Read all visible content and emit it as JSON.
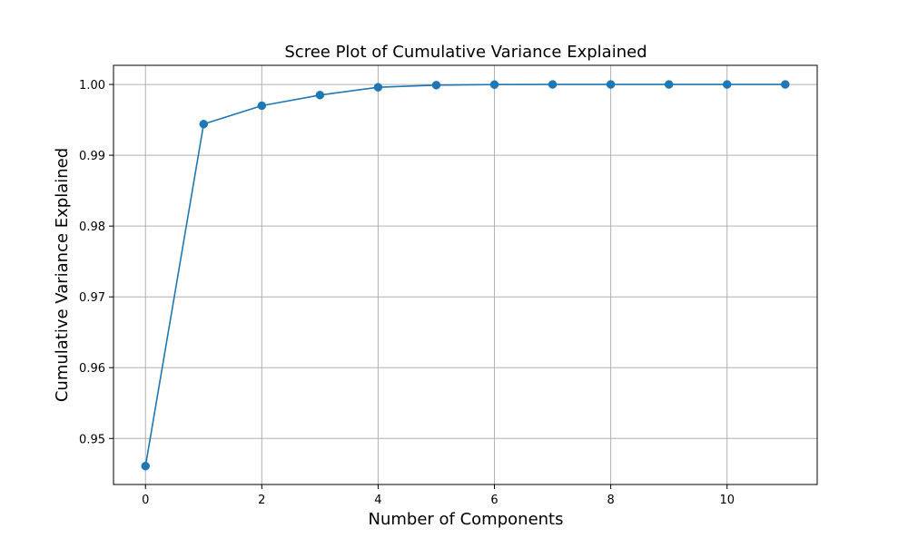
{
  "chart_data": {
    "type": "line",
    "title": "Scree Plot of Cumulative Variance Explained",
    "xlabel": "Number of Components",
    "ylabel": "Cumulative Variance Explained",
    "x": [
      0,
      1,
      2,
      3,
      4,
      5,
      6,
      7,
      8,
      9,
      10,
      11
    ],
    "series": [
      {
        "name": "",
        "values": [
          0.9461,
          0.9944,
          0.997,
          0.9985,
          0.9996,
          0.9999,
          0.99998,
          1.0,
          1.0,
          1.0,
          1.0,
          1.0
        ],
        "color": "#1f77b4",
        "marker": "circle"
      }
    ],
    "xlim": [
      -0.55,
      11.55
    ],
    "ylim": [
      0.9435,
      1.0027
    ],
    "x_ticks": [
      0,
      2,
      4,
      6,
      8,
      10
    ],
    "x_tick_labels": [
      "0",
      "2",
      "4",
      "6",
      "8",
      "10"
    ],
    "y_ticks": [
      0.95,
      0.96,
      0.97,
      0.98,
      0.99,
      1.0
    ],
    "y_tick_labels": [
      "0.95",
      "0.96",
      "0.97",
      "0.98",
      "0.99",
      "1.00"
    ],
    "grid": true
  }
}
